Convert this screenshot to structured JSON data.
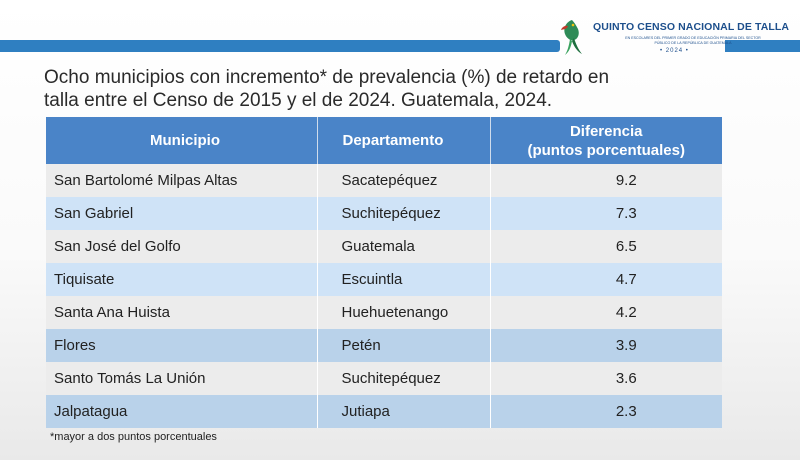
{
  "logo": {
    "title": "QUINTO CENSO NACIONAL DE TALLA",
    "subtitle": "EN ESCOLARES DEL PRIMER GRADO DE EDUCACIÓN PRIMARIA DEL SECTOR PÚBLICO DE LA REPÚBLICA DE GUATEMALA",
    "year": "• 2024 •"
  },
  "heading": "Ocho municipios con incremento* de prevalencia (%) de retardo en talla entre el Censo de 2015 y el de 2024. Guatemala, 2024.",
  "table": {
    "headers": [
      "Municipio",
      "Departamento",
      "Diferencia",
      "(puntos porcentuales)"
    ],
    "rows": [
      {
        "municipio": "San Bartolomé Milpas Altas",
        "departamento": "Sacatepéquez",
        "diferencia": "9.2"
      },
      {
        "municipio": "San Gabriel",
        "departamento": "Suchitepéquez",
        "diferencia": "7.3"
      },
      {
        "municipio": "San José del Golfo",
        "departamento": "Guatemala",
        "diferencia": "6.5"
      },
      {
        "municipio": "Tiquisate",
        "departamento": "Escuintla",
        "diferencia": "4.7"
      },
      {
        "municipio": "Santa Ana Huista",
        "departamento": "Huehuetenango",
        "diferencia": "4.2"
      },
      {
        "municipio": "Flores",
        "departamento": "Petén",
        "diferencia": "3.9"
      },
      {
        "municipio": "Santo Tomás La Unión",
        "departamento": "Suchitepéquez",
        "diferencia": "3.6"
      },
      {
        "municipio": "Jalpatagua",
        "departamento": "Jutiapa",
        "diferencia": "2.3"
      }
    ]
  },
  "footnote": "*mayor a dos puntos porcentuales",
  "colors": {
    "accent_bar": "#2f7fc1",
    "header_bg": "#4a84c8",
    "row_light": "#ececec",
    "row_blue": "#cfe3f7",
    "row_dark_blue": "#b9d2ea"
  }
}
